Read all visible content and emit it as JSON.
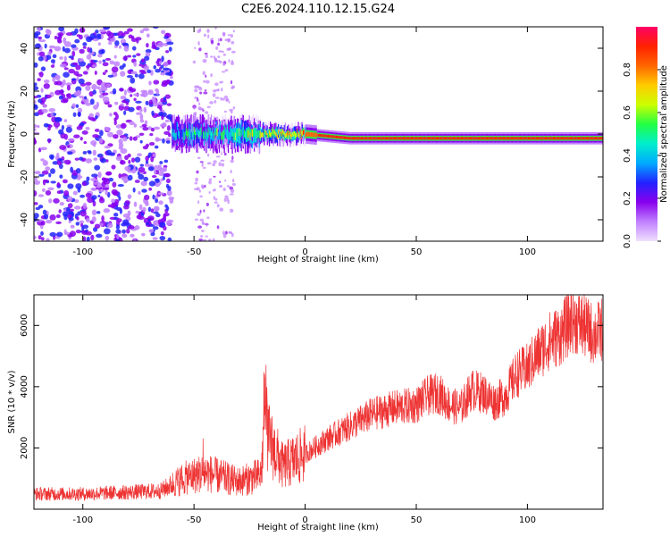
{
  "title": "C2E6.2024.110.12.15.G24",
  "chart_data": [
    {
      "type": "heatmap",
      "xlabel": "Height of straight line (km)",
      "ylabel": "Frequency (Hz)",
      "xlim": [
        -122,
        134
      ],
      "ylim": [
        -50,
        50
      ],
      "xticks": [
        -100,
        -50,
        0,
        50,
        100
      ],
      "yticks": [
        -40,
        -20,
        0,
        20,
        40
      ],
      "colorbar": {
        "label": "Normalized spectral amplitude",
        "range": [
          0,
          1
        ],
        "ticks": [
          "0.0",
          "0.2",
          "0.4",
          "0.6",
          "0.8"
        ],
        "colors": [
          "#f0e0ff",
          "#c080ff",
          "#8800ee",
          "#2222ff",
          "#00aaff",
          "#00eecc",
          "#22ff44",
          "#ccff00",
          "#ffcc00",
          "#ff6600",
          "#ff2200",
          "#ff0066"
        ]
      },
      "ridge": [
        {
          "x": -60,
          "freq": 0,
          "amp": 0.4
        },
        {
          "x": -40,
          "freq": 0,
          "amp": 0.45
        },
        {
          "x": -20,
          "freq": 0,
          "amp": 0.6
        },
        {
          "x": 0,
          "freq": 0,
          "amp": 0.85
        },
        {
          "x": 20,
          "freq": -2,
          "amp": 0.9
        },
        {
          "x": 50,
          "freq": -2,
          "amp": 0.95
        },
        {
          "x": 80,
          "freq": -2,
          "amp": 0.9
        },
        {
          "x": 100,
          "freq": -2,
          "amp": 0.95
        },
        {
          "x": 134,
          "freq": -2,
          "amp": 0.95
        }
      ],
      "noise_region": {
        "x_range": [
          -122,
          -60
        ],
        "amp_range": [
          0.05,
          0.3
        ]
      }
    },
    {
      "type": "line",
      "xlabel": "Height of straight line (km)",
      "ylabel": "SNR (10 * v/v)",
      "xlim": [
        -122,
        134
      ],
      "ylim": [
        0,
        7000
      ],
      "xticks": [
        -100,
        -50,
        0,
        50,
        100
      ],
      "yticks": [
        2000,
        4000,
        6000
      ],
      "color": "#ee3333",
      "trend": {
        "x": [
          -122,
          -100,
          -80,
          -65,
          -55,
          -45,
          -30,
          -20,
          -18,
          -10,
          0,
          10,
          20,
          30,
          40,
          50,
          55,
          60,
          65,
          70,
          75,
          80,
          85,
          90,
          95,
          100,
          105,
          110,
          115,
          120,
          125,
          130,
          134
        ],
        "y": [
          500,
          500,
          550,
          600,
          1000,
          1200,
          900,
          1100,
          2500,
          1400,
          1800,
          2300,
          2700,
          3100,
          3300,
          3400,
          3700,
          3800,
          3400,
          3300,
          3900,
          3800,
          3500,
          3700,
          4400,
          4600,
          5100,
          5500,
          5700,
          6200,
          6000,
          5700,
          5900
        ]
      }
    }
  ]
}
